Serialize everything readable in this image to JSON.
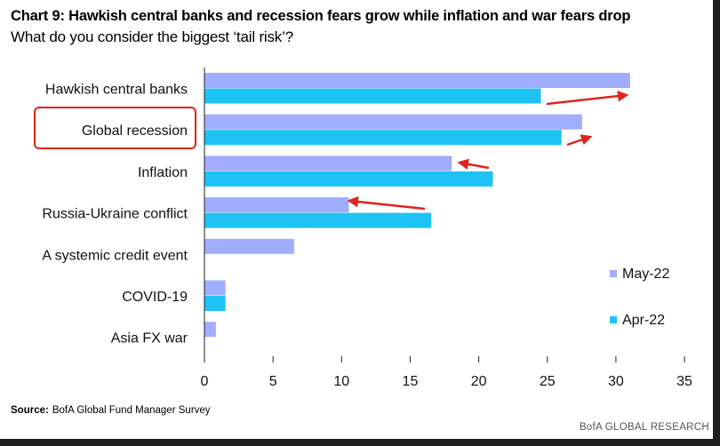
{
  "header": {
    "title": "Chart 9: Hawkish central banks and recession fears grow while inflation and war fears drop",
    "subtitle": "What do you consider the biggest ‘tail risk’?"
  },
  "footer": {
    "source_label": "Source:",
    "source_text": "BofA Global Fund Manager Survey",
    "brand": "BofA GLOBAL RESEARCH"
  },
  "annotations": {
    "highlighted_category": "Global recession",
    "highlight_color": "#e0241c",
    "arrow_color": "#e0241c"
  },
  "chart_data": {
    "type": "bar",
    "orientation": "horizontal",
    "categories": [
      "Hawkish central banks",
      "Global recession",
      "Inflation",
      "Russia-Ukraine conflict",
      "A systemic credit event",
      "COVID-19",
      "Asia FX war"
    ],
    "series": [
      {
        "name": "May-22",
        "color": "#a1adff",
        "values": [
          31,
          27.5,
          18,
          10.5,
          6.5,
          1.5,
          0.8
        ]
      },
      {
        "name": "Apr-22",
        "color": "#1ec2f5",
        "values": [
          24.5,
          26,
          null,
          16.5,
          null,
          1.5,
          null
        ]
      }
    ],
    "inflation_apr_value": 21,
    "xlim": [
      0,
      35
    ],
    "xticks": [
      "0",
      "5",
      "10",
      "15",
      "20",
      "25",
      "30",
      "35"
    ],
    "legend_position": "right"
  }
}
